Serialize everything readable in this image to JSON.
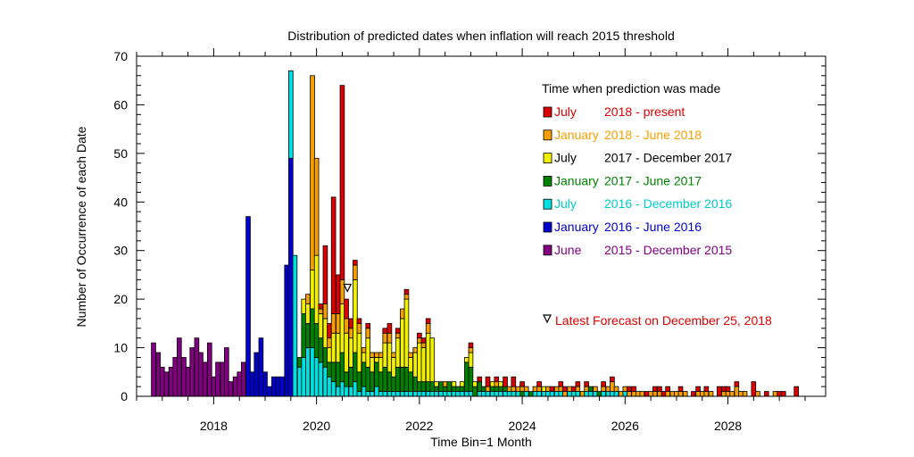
{
  "chart_data": {
    "type": "bar",
    "title": "Distribution of predicted dates when inflation will reach 2015 threshold",
    "xlabel": "Time Bin=1 Month",
    "ylabel": "Number of Occurrence of each Date",
    "xlim": [
      2016.5,
      2029.9
    ],
    "ylim": [
      0,
      70
    ],
    "x_ticks": [
      "2018",
      "2020",
      "2022",
      "2024",
      "2026",
      "2028"
    ],
    "x_tick_values": [
      2018,
      2020,
      2022,
      2024,
      2026,
      2028
    ],
    "y_ticks": [
      0,
      10,
      20,
      30,
      40,
      50,
      60,
      70
    ],
    "bin": "1 month",
    "stacked": true,
    "legend_title": "Time when prediction was made",
    "legend_placement": "right",
    "series": [
      {
        "key": "purple",
        "name_left": "June",
        "name_right": "2015 - December  2015",
        "color": "#800080"
      },
      {
        "key": "blue",
        "name_left": "January",
        "name_right": "2016 - June       2016",
        "color": "#0000cc"
      },
      {
        "key": "cyan",
        "name_left": "July",
        "name_right": "2016 - December  2016",
        "color": "#00e0e0"
      },
      {
        "key": "green",
        "name_left": "January",
        "name_right": "2017 - June       2017",
        "color": "#008000"
      },
      {
        "key": "yellow",
        "name_left": "July",
        "name_right": "2017 - December  2017",
        "color": "#f0f000"
      },
      {
        "key": "orange",
        "name_left": "January",
        "name_right": "2018 - June       2018",
        "color": "#f5a000"
      },
      {
        "key": "red",
        "name_left": "July",
        "name_right": "2018 - present",
        "color": "#dd0000"
      }
    ],
    "legend_label_colors": {
      "purple": "#800080",
      "blue": "#0000cc",
      "cyan": "#00c8c8",
      "green": "#008000",
      "yellow": "#000000",
      "orange": "#f5a000",
      "red": "#dd0000"
    },
    "annotation": {
      "text": "Latest Forecast on December  25, 2018",
      "marker": "inverted-triangle",
      "color": "#dd0000",
      "marker_x": 2020.6,
      "marker_y": 22.5
    },
    "bars": [
      {
        "x": 2016.83,
        "purple": 11
      },
      {
        "x": 2016.92,
        "purple": 9
      },
      {
        "x": 2017.0,
        "purple": 6
      },
      {
        "x": 2017.08,
        "purple": 5
      },
      {
        "x": 2017.17,
        "purple": 6
      },
      {
        "x": 2017.25,
        "purple": 8
      },
      {
        "x": 2017.33,
        "purple": 12
      },
      {
        "x": 2017.42,
        "purple": 8
      },
      {
        "x": 2017.5,
        "purple": 6
      },
      {
        "x": 2017.58,
        "purple": 10
      },
      {
        "x": 2017.67,
        "purple": 12
      },
      {
        "x": 2017.75,
        "purple": 9
      },
      {
        "x": 2017.83,
        "purple": 7
      },
      {
        "x": 2017.92,
        "purple": 11
      },
      {
        "x": 2018.0,
        "purple": 4
      },
      {
        "x": 2018.08,
        "purple": 7
      },
      {
        "x": 2018.17,
        "purple": 7
      },
      {
        "x": 2018.25,
        "purple": 10
      },
      {
        "x": 2018.33,
        "purple": 3
      },
      {
        "x": 2018.42,
        "purple": 4
      },
      {
        "x": 2018.5,
        "purple": 5
      },
      {
        "x": 2018.58,
        "purple": 7
      },
      {
        "x": 2018.67,
        "blue": 37
      },
      {
        "x": 2018.75,
        "blue": 5
      },
      {
        "x": 2018.83,
        "blue": 9
      },
      {
        "x": 2018.92,
        "blue": 12
      },
      {
        "x": 2019.0,
        "blue": 5
      },
      {
        "x": 2019.08,
        "blue": 2
      },
      {
        "x": 2019.17,
        "blue": 4
      },
      {
        "x": 2019.25,
        "blue": 4
      },
      {
        "x": 2019.33,
        "blue": 4
      },
      {
        "x": 2019.42,
        "blue": 27
      },
      {
        "x": 2019.5,
        "blue": 49,
        "cyan": 18
      },
      {
        "x": 2019.58,
        "cyan": 29
      },
      {
        "x": 2019.67,
        "cyan": 6,
        "green": 2
      },
      {
        "x": 2019.75,
        "cyan": 8,
        "green": 9,
        "yellow": 3
      },
      {
        "x": 2019.83,
        "cyan": 10,
        "green": 5,
        "yellow": 4,
        "orange": 2
      },
      {
        "x": 2019.92,
        "cyan": 10,
        "green": 8,
        "yellow": 8,
        "orange": 40
      },
      {
        "x": 2020.0,
        "cyan": 8,
        "green": 7,
        "yellow": 14,
        "orange": 20
      },
      {
        "x": 2020.08,
        "cyan": 7,
        "green": 5,
        "yellow": 5,
        "orange": 1,
        "red": 1
      },
      {
        "x": 2020.17,
        "cyan": 6,
        "green": 4,
        "yellow": 6,
        "orange": 3,
        "red": 12
      },
      {
        "x": 2020.25,
        "cyan": 4,
        "green": 3,
        "yellow": 3,
        "orange": 2,
        "red": 3
      },
      {
        "x": 2020.33,
        "cyan": 3,
        "green": 4,
        "yellow": 6,
        "orange": 4,
        "red": 24
      },
      {
        "x": 2020.42,
        "cyan": 2,
        "green": 5,
        "yellow": 6,
        "orange": 4,
        "red": 8
      },
      {
        "x": 2020.5,
        "cyan": 3,
        "green": 6,
        "yellow": 10,
        "orange": 5,
        "red": 40
      },
      {
        "x": 2020.58,
        "cyan": 2,
        "green": 3,
        "yellow": 8,
        "orange": 3,
        "red": 4
      },
      {
        "x": 2020.67,
        "cyan": 2,
        "green": 4,
        "yellow": 6,
        "orange": 2,
        "red": 2
      },
      {
        "x": 2020.75,
        "cyan": 3,
        "green": 6,
        "yellow": 15,
        "orange": 3,
        "red": 1
      },
      {
        "x": 2020.83,
        "cyan": 1,
        "green": 4,
        "yellow": 8,
        "orange": 2,
        "red": 1
      },
      {
        "x": 2020.92,
        "cyan": 2,
        "green": 5,
        "yellow": 2,
        "orange": 1
      },
      {
        "x": 2021.0,
        "cyan": 1,
        "green": 5,
        "yellow": 6,
        "orange": 2,
        "red": 1
      },
      {
        "x": 2021.08,
        "cyan": 1,
        "green": 4,
        "yellow": 3,
        "orange": 1
      },
      {
        "x": 2021.17,
        "cyan": 2,
        "green": 5,
        "yellow": 1,
        "orange": 1
      },
      {
        "x": 2021.25,
        "cyan": 1,
        "green": 4,
        "yellow": 3,
        "orange": 1
      },
      {
        "x": 2021.33,
        "cyan": 1,
        "green": 5,
        "yellow": 5,
        "orange": 2,
        "red": 1
      },
      {
        "x": 2021.42,
        "cyan": 1,
        "green": 4,
        "yellow": 6,
        "orange": 2,
        "red": 2
      },
      {
        "x": 2021.5,
        "cyan": 1,
        "green": 3,
        "yellow": 4,
        "orange": 1
      },
      {
        "x": 2021.58,
        "cyan": 1,
        "green": 5,
        "yellow": 6,
        "orange": 1,
        "red": 1
      },
      {
        "x": 2021.67,
        "cyan": 1,
        "green": 5,
        "yellow": 10,
        "orange": 2
      },
      {
        "x": 2021.75,
        "cyan": 1,
        "green": 5,
        "yellow": 14,
        "orange": 1,
        "red": 1
      },
      {
        "x": 2021.83,
        "cyan": 1,
        "green": 4,
        "yellow": 3,
        "orange": 1
      },
      {
        "x": 2021.92,
        "cyan": 1,
        "green": 3,
        "yellow": 5,
        "orange": 1
      },
      {
        "x": 2022.0,
        "cyan": 1,
        "green": 2,
        "yellow": 8,
        "orange": 1,
        "red": 1
      },
      {
        "x": 2022.08,
        "cyan": 1,
        "green": 2,
        "yellow": 7,
        "orange": 1,
        "red": 1
      },
      {
        "x": 2022.17,
        "cyan": 1,
        "green": 2,
        "yellow": 10,
        "orange": 2,
        "red": 1
      },
      {
        "x": 2022.25,
        "cyan": 1,
        "green": 2,
        "yellow": 9
      },
      {
        "x": 2022.33,
        "cyan": 1,
        "green": 1,
        "yellow": 1
      },
      {
        "x": 2022.42,
        "cyan": 1,
        "green": 2
      },
      {
        "x": 2022.5,
        "cyan": 1,
        "green": 1,
        "orange": 1
      },
      {
        "x": 2022.58,
        "cyan": 1,
        "green": 2
      },
      {
        "x": 2022.67,
        "cyan": 1,
        "green": 1,
        "yellow": 1
      },
      {
        "x": 2022.75,
        "cyan": 1,
        "green": 1
      },
      {
        "x": 2022.83,
        "cyan": 1,
        "green": 1,
        "yellow": 1
      },
      {
        "x": 2022.92,
        "cyan": 1,
        "green": 6,
        "yellow": 1
      },
      {
        "x": 2023.0,
        "cyan": 1,
        "green": 5,
        "yellow": 3,
        "orange": 1,
        "red": 1
      },
      {
        "x": 2023.08,
        "green": 2,
        "yellow": 1
      },
      {
        "x": 2023.17,
        "cyan": 1,
        "green": 2,
        "red": 1
      },
      {
        "x": 2023.25,
        "cyan": 1,
        "green": 1
      },
      {
        "x": 2023.33,
        "cyan": 1,
        "orange": 1,
        "red": 2
      },
      {
        "x": 2023.42,
        "cyan": 1,
        "green": 1,
        "yellow": 1
      },
      {
        "x": 2023.5,
        "cyan": 1,
        "green": 1,
        "orange": 1,
        "red": 1
      },
      {
        "x": 2023.58,
        "cyan": 1,
        "green": 1,
        "yellow": 1
      },
      {
        "x": 2023.67,
        "cyan": 1,
        "green": 1,
        "red": 2
      },
      {
        "x": 2023.75,
        "cyan": 1,
        "orange": 1
      },
      {
        "x": 2023.83,
        "cyan": 1,
        "orange": 1,
        "red": 2
      },
      {
        "x": 2023.92,
        "cyan": 1,
        "orange": 1
      },
      {
        "x": 2024.0,
        "green": 1,
        "orange": 1,
        "red": 1
      },
      {
        "x": 2024.08,
        "cyan": 1,
        "orange": 1
      },
      {
        "x": 2024.17,
        "green": 1
      },
      {
        "x": 2024.25,
        "cyan": 1,
        "orange": 1
      },
      {
        "x": 2024.33,
        "cyan": 1,
        "orange": 1,
        "red": 1
      },
      {
        "x": 2024.42,
        "cyan": 1,
        "yellow": 1
      },
      {
        "x": 2024.5,
        "cyan": 1,
        "orange": 1
      },
      {
        "x": 2024.58,
        "cyan": 1,
        "red": 1
      },
      {
        "x": 2024.67,
        "cyan": 1,
        "orange": 1
      },
      {
        "x": 2024.75,
        "cyan": 1,
        "orange": 1,
        "red": 1
      },
      {
        "x": 2024.83,
        "orange": 1,
        "red": 1
      },
      {
        "x": 2024.92,
        "cyan": 1,
        "orange": 1
      },
      {
        "x": 2025.0,
        "cyan": 1,
        "red": 1
      },
      {
        "x": 2025.08,
        "cyan": 1,
        "orange": 1,
        "red": 1
      },
      {
        "x": 2025.17,
        "orange": 1
      },
      {
        "x": 2025.25,
        "cyan": 1,
        "orange": 1,
        "red": 1
      },
      {
        "x": 2025.33,
        "cyan": 1,
        "green": 1
      },
      {
        "x": 2025.42,
        "cyan": 1,
        "orange": 1
      },
      {
        "x": 2025.5,
        "green": 1
      },
      {
        "x": 2025.58,
        "cyan": 1,
        "orange": 1,
        "red": 1
      },
      {
        "x": 2025.67,
        "cyan": 1,
        "orange": 1
      },
      {
        "x": 2025.75,
        "cyan": 1,
        "orange": 2,
        "red": 1
      },
      {
        "x": 2025.83,
        "cyan": 1,
        "orange": 1
      },
      {
        "x": 2025.92,
        "orange": 1
      },
      {
        "x": 2026.0,
        "cyan": 1,
        "orange": 1
      },
      {
        "x": 2026.08,
        "orange": 1,
        "red": 1
      },
      {
        "x": 2026.17,
        "orange": 1,
        "red": 1
      },
      {
        "x": 2026.25,
        "orange": 1
      },
      {
        "x": 2026.33,
        "orange": 1
      },
      {
        "x": 2026.42,
        "red": 1
      },
      {
        "x": 2026.5,
        "orange": 1
      },
      {
        "x": 2026.58,
        "orange": 1,
        "red": 1
      },
      {
        "x": 2026.67,
        "orange": 1,
        "red": 1
      },
      {
        "x": 2026.75,
        "red": 1
      },
      {
        "x": 2026.83,
        "orange": 1,
        "red": 1
      },
      {
        "x": 2026.92,
        "orange": 1
      },
      {
        "x": 2027.0,
        "orange": 1
      },
      {
        "x": 2027.08,
        "orange": 1,
        "red": 1
      },
      {
        "x": 2027.17,
        "orange": 1
      },
      {
        "x": 2027.33,
        "red": 1
      },
      {
        "x": 2027.42,
        "orange": 1,
        "red": 1
      },
      {
        "x": 2027.5,
        "orange": 1
      },
      {
        "x": 2027.58,
        "orange": 1,
        "red": 1
      },
      {
        "x": 2027.67,
        "orange": 1
      },
      {
        "x": 2027.83,
        "red": 2
      },
      {
        "x": 2027.92,
        "orange": 1,
        "red": 1
      },
      {
        "x": 2028.0,
        "orange": 1,
        "red": 1
      },
      {
        "x": 2028.08,
        "orange": 1
      },
      {
        "x": 2028.17,
        "orange": 2,
        "red": 1
      },
      {
        "x": 2028.25,
        "orange": 1
      },
      {
        "x": 2028.33,
        "orange": 1
      },
      {
        "x": 2028.5,
        "red": 3
      },
      {
        "x": 2028.58,
        "orange": 1
      },
      {
        "x": 2028.75,
        "red": 1
      },
      {
        "x": 2028.92,
        "orange": 1
      },
      {
        "x": 2029.0,
        "red": 1
      },
      {
        "x": 2029.08,
        "red": 1
      },
      {
        "x": 2029.33,
        "red": 2
      }
    ]
  }
}
